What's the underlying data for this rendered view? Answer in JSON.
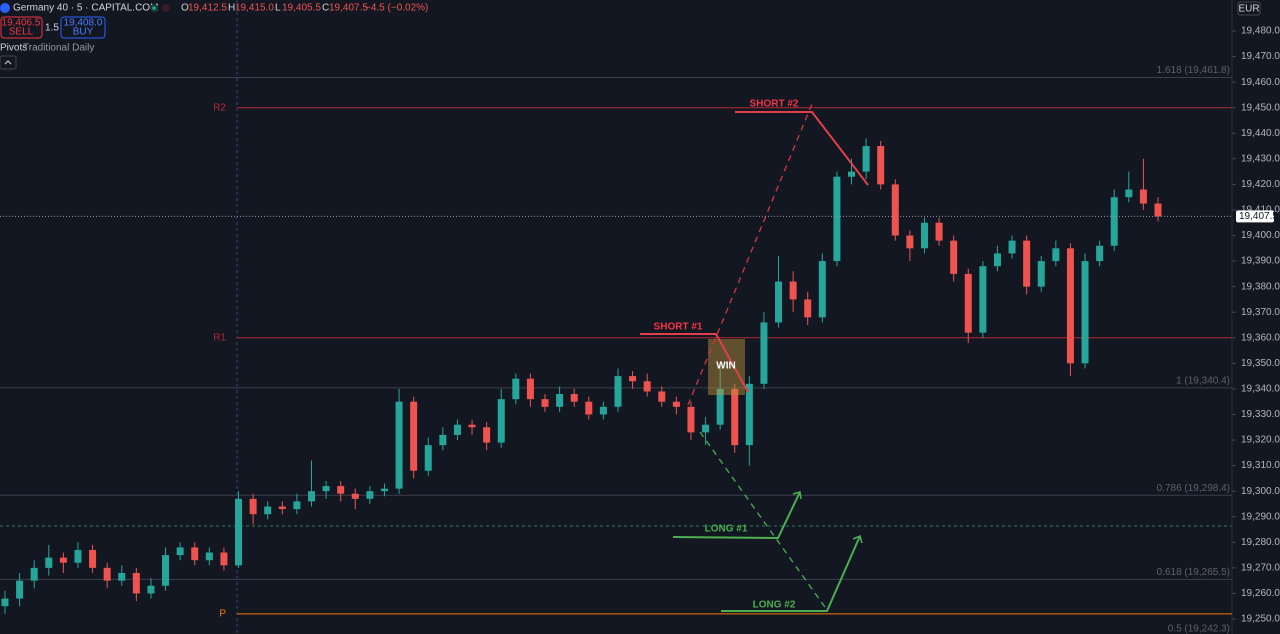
{
  "chart_data": {
    "type": "candlestick",
    "title": "Germany 40 · 5 · CAPITAL.COM",
    "ohlc": [
      {
        "key": "O",
        "label": "19,412.5"
      },
      {
        "key": "H",
        "label": "19,415.0"
      },
      {
        "key": "L",
        "label": "19,405.5"
      },
      {
        "key": "C",
        "label": "19,407.5"
      }
    ],
    "change": "−4.5 (−0.02%)",
    "sell": {
      "price": "19,406.5",
      "label": "SELL"
    },
    "spread": "1.5",
    "buy": {
      "price": "19,408.0",
      "label": "BUY"
    },
    "indicator": "Pivots",
    "indicator_params": "Traditional Daily",
    "currency": "EUR",
    "up_color": "#26a69a",
    "down_color": "#ef5350",
    "ylim": [
      19250,
      19480
    ],
    "yticks": [
      {
        "value": 19250,
        "label": "19,250.0"
      },
      {
        "value": 19260,
        "label": "19,260.0"
      },
      {
        "value": 19270,
        "label": "19,270.0"
      },
      {
        "value": 19280,
        "label": "19,280.0"
      },
      {
        "value": 19290,
        "label": "19,290.0"
      },
      {
        "value": 19300,
        "label": "19,300.0"
      },
      {
        "value": 19310,
        "label": "19,310.0"
      },
      {
        "value": 19320,
        "label": "19,320.0"
      },
      {
        "value": 19330,
        "label": "19,330.0"
      },
      {
        "value": 19340,
        "label": "19,340.0"
      },
      {
        "value": 19350,
        "label": "19,350.0"
      },
      {
        "value": 19360,
        "label": "19,360.0"
      },
      {
        "value": 19370,
        "label": "19,370.0"
      },
      {
        "value": 19380,
        "label": "19,380.0"
      },
      {
        "value": 19390,
        "label": "19,390.0"
      },
      {
        "value": 19400,
        "label": "19,400.0"
      },
      {
        "value": 19410,
        "label": "19,410.0"
      },
      {
        "value": 19420,
        "label": "19,420.0"
      },
      {
        "value": 19430,
        "label": "19,430.0"
      },
      {
        "value": 19440,
        "label": "19,440.0"
      },
      {
        "value": 19450,
        "label": "19,450.0"
      },
      {
        "value": 19460,
        "label": "19,460.0"
      },
      {
        "value": 19470,
        "label": "19,470.0"
      },
      {
        "value": 19480,
        "label": "19,480.0"
      }
    ],
    "last_price": {
      "value": 19407.5,
      "label": "19,407.5"
    },
    "pivots": [
      {
        "label": "R2",
        "value": 19450,
        "color": "#b22833"
      },
      {
        "label": "R1",
        "value": 19360,
        "color": "#b22833"
      },
      {
        "label": "P",
        "value": 19252,
        "color": "#f57c00"
      }
    ],
    "fib_levels": [
      {
        "label": "1.618 (19,461.8)",
        "value": 19461.8
      },
      {
        "label": "1 (19,340.4)",
        "value": 19340.4
      },
      {
        "label": "0.786 (19,298.4)",
        "value": 19298.4
      },
      {
        "label": "0.618 (19,265.5)",
        "value": 19265.5
      },
      {
        "label": "0.5 (19,242.3)",
        "value": 19242.3
      }
    ],
    "annotations": [
      "SHORT #1",
      "SHORT #2",
      "WIN",
      "LONG #1",
      "LONG #2"
    ],
    "candles": [
      [
        19255,
        19261,
        19252,
        19258
      ],
      [
        19258,
        19268,
        19255,
        19265
      ],
      [
        19265,
        19273,
        19262,
        19270
      ],
      [
        19270,
        19279,
        19267,
        19274
      ],
      [
        19274,
        19276,
        19268,
        19272
      ],
      [
        19272,
        19280,
        19270,
        19277
      ],
      [
        19277,
        19279,
        19268,
        19270
      ],
      [
        19270,
        19272,
        19262,
        19265
      ],
      [
        19265,
        19271,
        19263,
        19268
      ],
      [
        19268,
        19270,
        19257,
        19260
      ],
      [
        19260,
        19266,
        19258,
        19263
      ],
      [
        19263,
        19278,
        19261,
        19275
      ],
      [
        19275,
        19280,
        19273,
        19278
      ],
      [
        19278,
        19280,
        19271,
        19273
      ],
      [
        19273,
        19278,
        19271,
        19276
      ],
      [
        19276,
        19278,
        19269,
        19271
      ],
      [
        19271,
        19300,
        19270,
        19297
      ],
      [
        19297,
        19299,
        19287,
        19291
      ],
      [
        19291,
        19296,
        19289,
        19294
      ],
      [
        19294,
        19296,
        19291,
        19293
      ],
      [
        19293,
        19299,
        19291,
        19296
      ],
      [
        19296,
        19312,
        19294,
        19300
      ],
      [
        19300,
        19304,
        19297,
        19302
      ],
      [
        19302,
        19304,
        19296,
        19299
      ],
      [
        19299,
        19301,
        19293,
        19297
      ],
      [
        19297,
        19302,
        19295,
        19300
      ],
      [
        19300,
        19303,
        19298,
        19301
      ],
      [
        19301,
        19340,
        19299,
        19335
      ],
      [
        19335,
        19337,
        19305,
        19308
      ],
      [
        19308,
        19321,
        19306,
        19318
      ],
      [
        19318,
        19325,
        19316,
        19322
      ],
      [
        19322,
        19328,
        19320,
        19326
      ],
      [
        19326,
        19328,
        19322,
        19325
      ],
      [
        19325,
        19327,
        19316,
        19319
      ],
      [
        19319,
        19340,
        19317,
        19336
      ],
      [
        19336,
        19346,
        19334,
        19344
      ],
      [
        19344,
        19346,
        19333,
        19336
      ],
      [
        19336,
        19338,
        19331,
        19333
      ],
      [
        19333,
        19341,
        19331,
        19338
      ],
      [
        19338,
        19340,
        19333,
        19335
      ],
      [
        19335,
        19337,
        19328,
        19330
      ],
      [
        19330,
        19335,
        19328,
        19333
      ],
      [
        19333,
        19348,
        19331,
        19345
      ],
      [
        19345,
        19347,
        19340,
        19343
      ],
      [
        19343,
        19346,
        19337,
        19339
      ],
      [
        19339,
        19341,
        19333,
        19335
      ],
      [
        19335,
        19337,
        19330,
        19333
      ],
      [
        19333,
        19335,
        19320,
        19323
      ],
      [
        19323,
        19329,
        19318,
        19326
      ],
      [
        19326,
        19350,
        19324,
        19340
      ],
      [
        19340,
        19342,
        19315,
        19318
      ],
      [
        19318,
        19345,
        19310,
        19342
      ],
      [
        19342,
        19370,
        19340,
        19366
      ],
      [
        19366,
        19392,
        19364,
        19382
      ],
      [
        19382,
        19386,
        19370,
        19375
      ],
      [
        19375,
        19378,
        19365,
        19368
      ],
      [
        19368,
        19393,
        19366,
        19390
      ],
      [
        19390,
        19425,
        19388,
        19423
      ],
      [
        19423,
        19430,
        19420,
        19425
      ],
      [
        19425,
        19438,
        19422,
        19435
      ],
      [
        19435,
        19437,
        19418,
        19420
      ],
      [
        19420,
        19422,
        19398,
        19400
      ],
      [
        19400,
        19402,
        19390,
        19395
      ],
      [
        19395,
        19407,
        19393,
        19405
      ],
      [
        19405,
        19407,
        19396,
        19398
      ],
      [
        19398,
        19400,
        19382,
        19385
      ],
      [
        19385,
        19387,
        19358,
        19362
      ],
      [
        19362,
        19390,
        19360,
        19388
      ],
      [
        19388,
        19396,
        19386,
        19393
      ],
      [
        19393,
        19400,
        19391,
        19398
      ],
      [
        19398,
        19400,
        19377,
        19380
      ],
      [
        19380,
        19392,
        19378,
        19390
      ],
      [
        19390,
        19398,
        19388,
        19395
      ],
      [
        19395,
        19397,
        19345,
        19350
      ],
      [
        19350,
        19393,
        19348,
        19390
      ],
      [
        19390,
        19398,
        19388,
        19396
      ],
      [
        19396,
        19418,
        19394,
        19415
      ],
      [
        19415,
        19425,
        19413,
        19418
      ],
      [
        19418,
        19430,
        19410,
        19412.5
      ],
      [
        19412.5,
        19415,
        19405.5,
        19407.5
      ]
    ]
  }
}
